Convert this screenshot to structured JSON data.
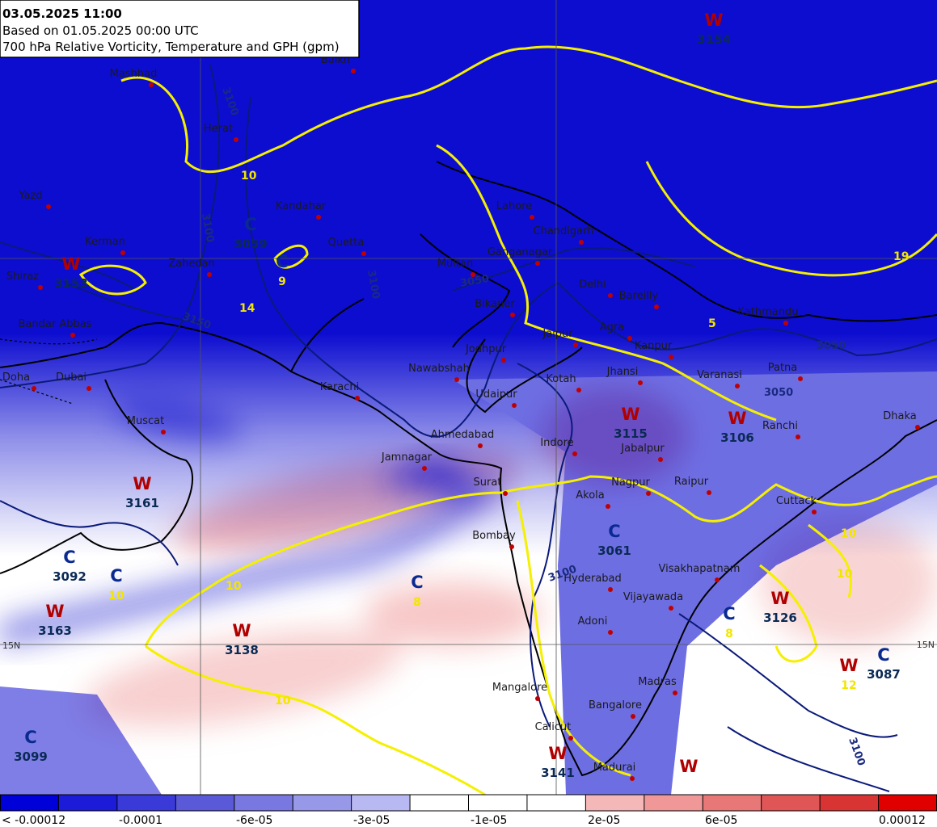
{
  "header": {
    "valid": "03.05.2025 11:00",
    "based": "Based on 01.05.2025 00:00 UTC",
    "title": "700 hPa Relative Vorticity, Temperature and GPH (gpm)"
  },
  "grid_labels": [
    "15N",
    "15N"
  ],
  "cities": [
    "Balkh",
    "Mashhad",
    "Herat",
    "Kandahar",
    "Quetta",
    "Zahedan",
    "Kerman",
    "Yazd",
    "Shiraz",
    "Bandar Abbas",
    "Doha",
    "Dubai",
    "Muscat",
    "Karachi",
    "Nawabshah",
    "Multan",
    "Ganganagar",
    "Chandigarh",
    "Lahore",
    "Delhi",
    "Bareilly",
    "Bikaner",
    "Jaipur",
    "Agra",
    "Kanpur",
    "Jodhpur",
    "Jhansi",
    "Kotah",
    "Varanasi",
    "Patna",
    "Kathmandu",
    "Udaipur",
    "Ahmedabad",
    "Indore",
    "Jabalpur",
    "Ranchi",
    "Dhaka",
    "Jamnagar",
    "Surat",
    "Akola",
    "Nagpur",
    "Raipur",
    "Cuttack",
    "Bombay",
    "Hyderabad",
    "Visakhapatnam",
    "Vijayawada",
    "Adoni",
    "Mangalore",
    "Madras",
    "Bangalore",
    "Calicut",
    "Madurai"
  ],
  "systems": [
    {
      "letter": "W",
      "value": 3154
    },
    {
      "letter": "C",
      "value": 3059
    },
    {
      "letter": "C",
      "temperature": 9
    },
    {
      "letter": "W",
      "value": 3153
    },
    {
      "letter": "W",
      "value": 3115
    },
    {
      "letter": "W",
      "value": 3106
    },
    {
      "letter": "W",
      "value": 3161
    },
    {
      "letter": "C",
      "value": 3092
    },
    {
      "letter": "C",
      "temperature": 10
    },
    {
      "letter": "W",
      "value": 3163
    },
    {
      "letter": "C",
      "temperature": 8
    },
    {
      "letter": "W",
      "value": 3138
    },
    {
      "letter": "C",
      "value": 3061
    },
    {
      "letter": "W",
      "value": 3126
    },
    {
      "letter": "C",
      "temperature": 8
    },
    {
      "letter": "W",
      "temperature": 12
    },
    {
      "letter": "C",
      "value": 3087
    },
    {
      "letter": "C",
      "value": 3099
    },
    {
      "letter": "W",
      "value": 3141
    },
    {
      "letter": "W"
    }
  ],
  "contour_labels": {
    "gph": [
      3100,
      3100,
      3150,
      3050,
      3100,
      3050,
      3050,
      3100,
      3100
    ],
    "temperature": [
      10,
      14,
      5,
      10,
      10,
      10,
      10,
      19
    ]
  },
  "colorbar": {
    "colors": [
      "#0000d8",
      "#1c1cd8",
      "#3a3ad8",
      "#5a5ad8",
      "#7878e0",
      "#9898e8",
      "#b8b8f2",
      "#ffffff",
      "#ffffff",
      "#ffffff",
      "#f4b8b8",
      "#f09898",
      "#e87878",
      "#e05656",
      "#d83434",
      "#e00000"
    ],
    "labels": [
      "< -0.00012",
      "-0.0001",
      "-6e-05",
      "-3e-05",
      "-1e-05",
      "2e-05",
      "6e-05",
      "0.00012"
    ]
  }
}
